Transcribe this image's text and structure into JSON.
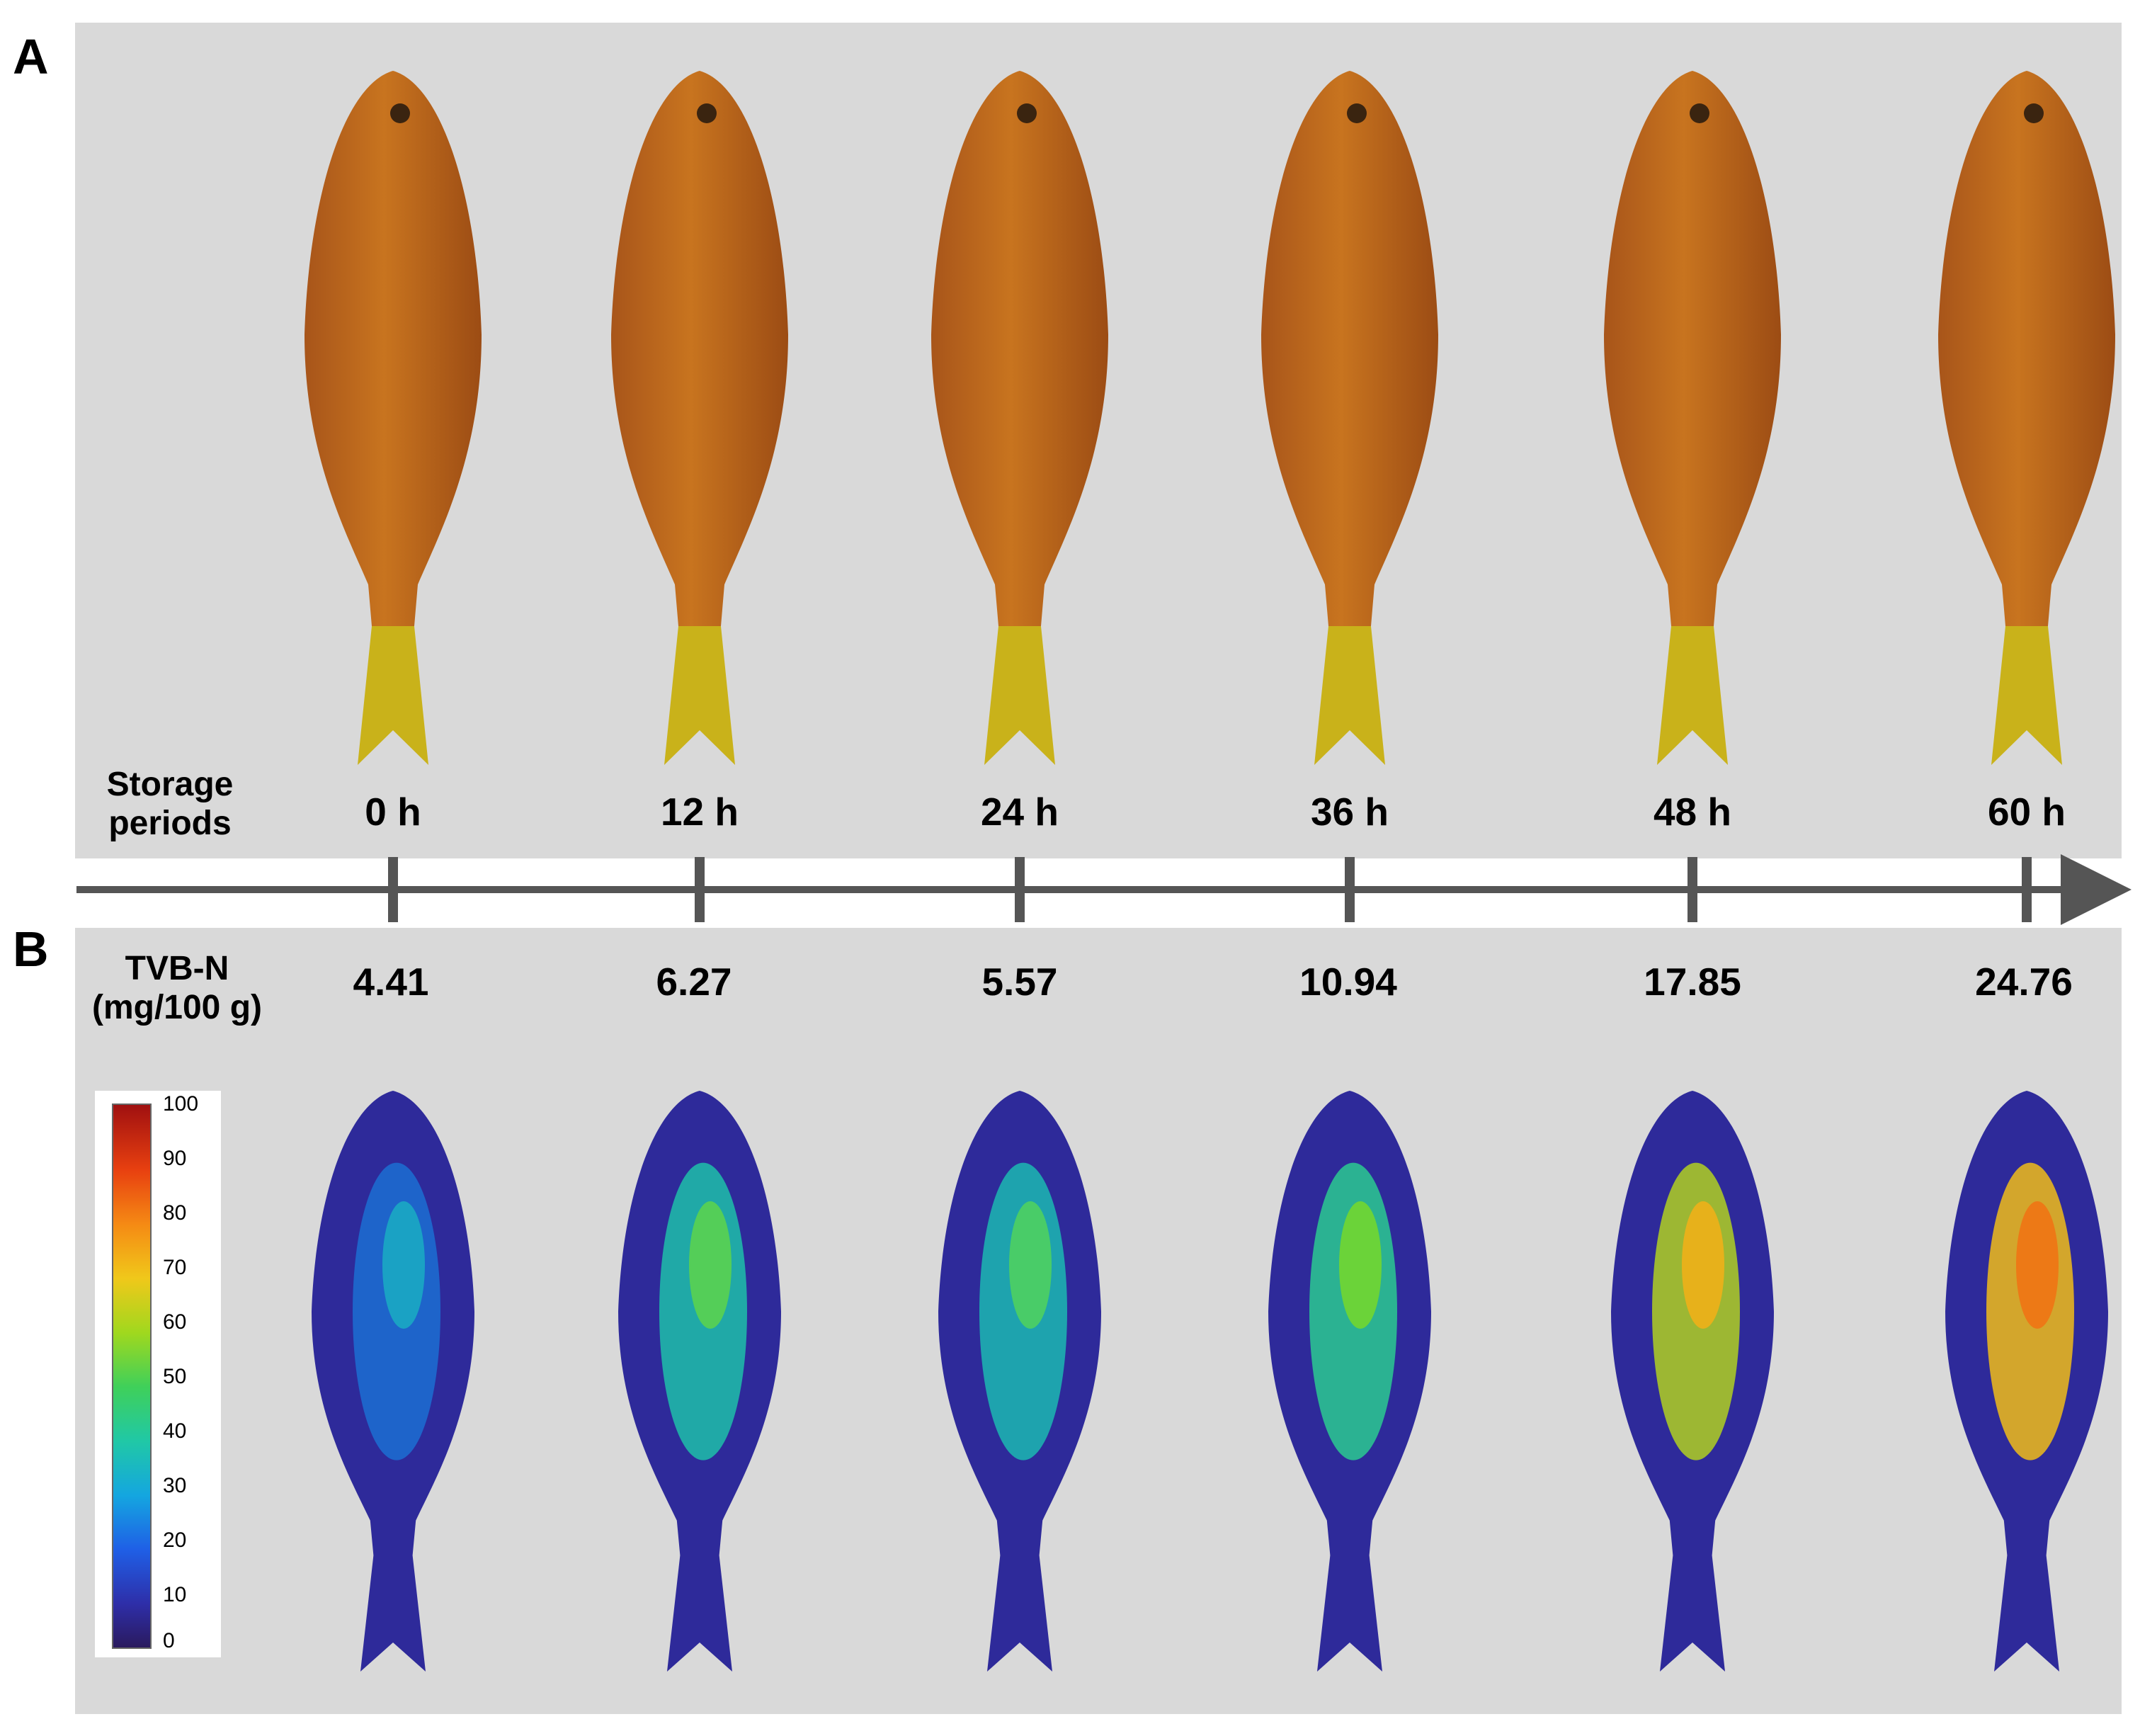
{
  "panels": {
    "a": "A",
    "b": "B"
  },
  "storage_label": "Storage\nperiods",
  "tvbn_label": "TVB-N\n(mg/100 g)",
  "samples": [
    {
      "time": "0 h",
      "tvbn": "4.41",
      "heat_level": 0.2
    },
    {
      "time": "12 h",
      "tvbn": "6.27",
      "heat_level": 0.38
    },
    {
      "time": "24 h",
      "tvbn": "5.57",
      "heat_level": 0.36
    },
    {
      "time": "36 h",
      "tvbn": "10.94",
      "heat_level": 0.42
    },
    {
      "time": "48 h",
      "tvbn": "17.85",
      "heat_level": 0.62
    },
    {
      "time": "60 h",
      "tvbn": "24.76",
      "heat_level": 0.72
    }
  ],
  "colorbar": {
    "ticks": [
      "100",
      "90",
      "80",
      "70",
      "60",
      "50",
      "40",
      "30",
      "20",
      "10",
      "0"
    ]
  },
  "colors": {
    "panel_bg": "#d9d9d9",
    "axis": "#555555",
    "fish_body": "#c8741f",
    "fish_tail": "#c9b21a"
  }
}
